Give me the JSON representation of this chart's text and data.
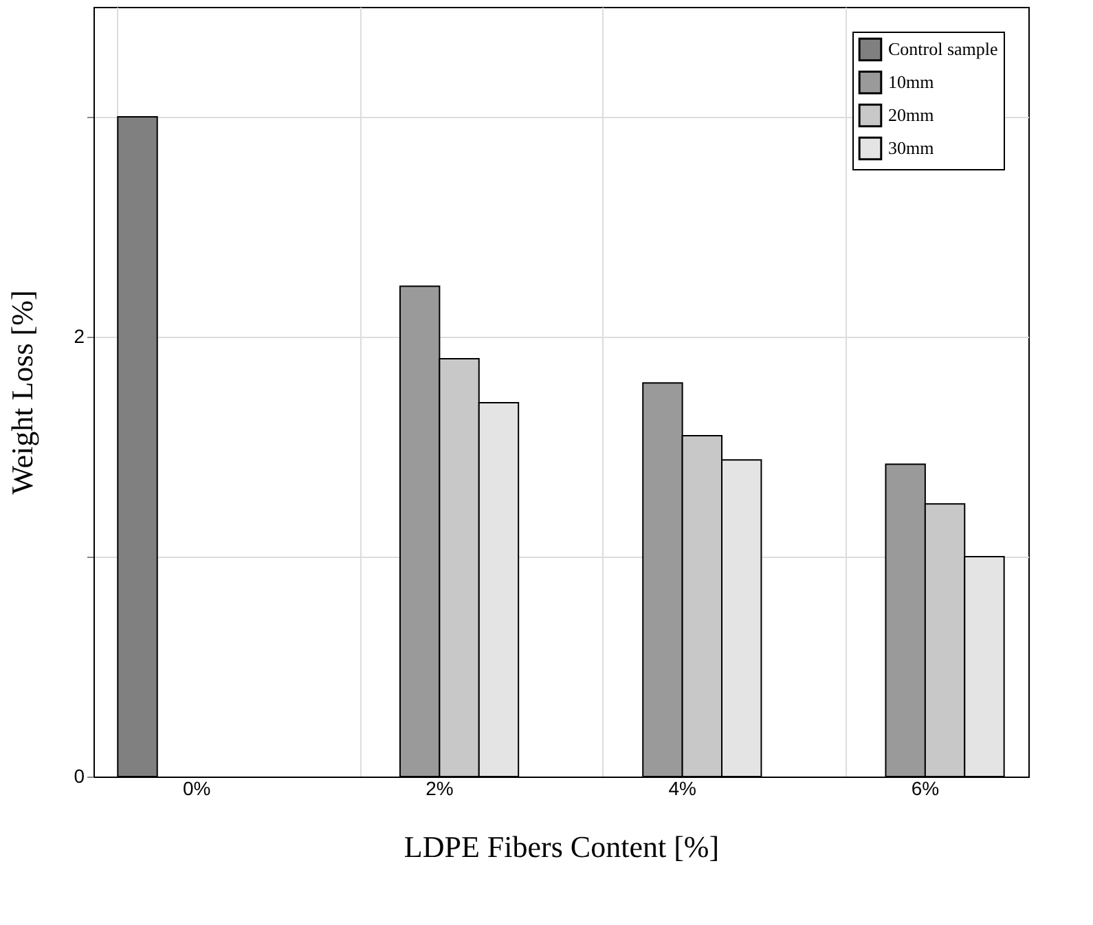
{
  "chart_data": {
    "type": "bar",
    "xlabel": "LDPE Fibers Content [%]",
    "ylabel": "Weight Loss [%]",
    "categories": [
      "0%",
      "2%",
      "4%",
      "6%"
    ],
    "series": [
      {
        "name": "Control sample",
        "color": "#808080",
        "values": [
          3.0,
          null,
          null,
          null
        ]
      },
      {
        "name": "10mm",
        "color": "#9a9a9a",
        "values": [
          null,
          2.23,
          1.79,
          1.42
        ]
      },
      {
        "name": "20mm",
        "color": "#c8c8c8",
        "values": [
          null,
          1.9,
          1.55,
          1.24
        ]
      },
      {
        "name": "30mm",
        "color": "#e4e4e4",
        "values": [
          null,
          1.7,
          1.44,
          1.0
        ]
      }
    ],
    "ylim": [
      0,
      3.5
    ],
    "yticks": [
      0,
      {
        "value": 1,
        "label": null
      },
      2,
      {
        "value": 3,
        "label": null
      }
    ],
    "grid": true,
    "legend": "top right"
  }
}
